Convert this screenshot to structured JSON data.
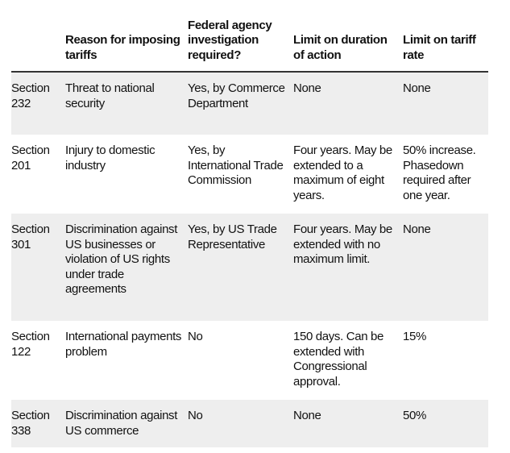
{
  "table": {
    "columns": [
      "Reason for imposing tariffs",
      "Federal agency investigation required?",
      "Limit on duration of action",
      "Limit on tariff rate"
    ],
    "rows": [
      [
        "Section 232",
        "Threat to national security",
        "Yes, by Commerce Department",
        "None",
        "None"
      ],
      [
        "Section 201",
        "Injury to domestic industry",
        "Yes, by International Trade Commission",
        "Four years. May be extended to a maximum of eight years.",
        "50% increase. Phasedown required after one year."
      ],
      [
        "Section 301",
        "Discrimination against US businesses or violation of US rights under trade agreements",
        "Yes, by US Trade Representative",
        "Four years. May be extended with no maximum limit.",
        "None"
      ],
      [
        "Section 122",
        "International payments problem",
        "No",
        "150 days. Can be extended with Congressional approval.",
        "15%"
      ],
      [
        "Section 338",
        "Discrimination against US commerce",
        "No",
        "None",
        "50%"
      ]
    ]
  }
}
